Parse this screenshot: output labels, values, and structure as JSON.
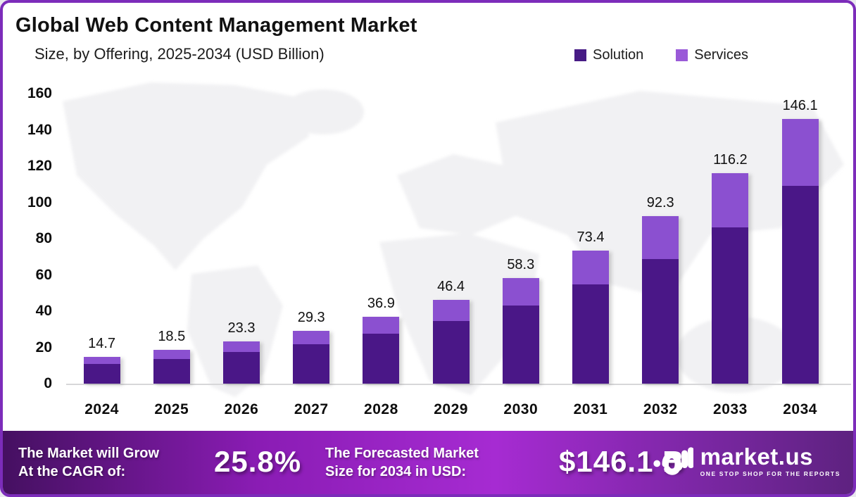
{
  "header": {
    "title": "Global Web Content Management  Market",
    "subtitle": "Size, by Offering, 2025-2034 (USD Billion)"
  },
  "legend": [
    {
      "label": "Solution",
      "color": "#471b85"
    },
    {
      "label": "Services",
      "color": "#9a5ad8"
    }
  ],
  "chart_data": {
    "type": "bar",
    "stacked": true,
    "title": "Global Web Content Management Market Size, by Offering, 2025-2034 (USD Billion)",
    "categories": [
      "2024",
      "2025",
      "2026",
      "2027",
      "2028",
      "2029",
      "2030",
      "2031",
      "2032",
      "2033",
      "2034"
    ],
    "series": [
      {
        "name": "Solution",
        "color": "#4a1787",
        "values": [
          10.9,
          13.7,
          17.3,
          21.9,
          27.4,
          34.5,
          43.3,
          54.6,
          68.6,
          86.4,
          109.0
        ]
      },
      {
        "name": "Services",
        "color": "#8b50d0",
        "values": [
          3.8,
          4.8,
          6.0,
          7.4,
          9.5,
          11.9,
          15.0,
          18.8,
          23.7,
          29.8,
          37.1
        ]
      }
    ],
    "totals": [
      14.7,
      18.5,
      23.3,
      29.3,
      36.9,
      46.4,
      58.3,
      73.4,
      92.3,
      116.2,
      146.1
    ],
    "total_labels": [
      "14.7",
      "18.5",
      "23.3",
      "29.3",
      "36.9",
      "46.4",
      "58.3",
      "73.4",
      "92.3",
      "116.2",
      "146.1"
    ],
    "y_ticks": [
      0,
      20,
      40,
      60,
      80,
      100,
      120,
      140,
      160
    ],
    "ylim": [
      0,
      160
    ],
    "xlabel": "",
    "ylabel": "",
    "grid": false,
    "legend_position": "top-right",
    "value_unit": "USD Billion"
  },
  "footer": {
    "cagr_label_lines": [
      "The Market will Grow",
      "At the CAGR of:"
    ],
    "cagr_value": "25.8%",
    "forecast_label_lines": [
      "The Forecasted Market",
      "Size for 2034 in USD:"
    ],
    "forecast_value": "$146.1 B",
    "logo_name": "market.us",
    "logo_tagline": "ONE STOP SHOP FOR THE REPORTS"
  },
  "colors": {
    "frame_border": "#7c2cba",
    "solution": "#4a1787",
    "services": "#8b50d0",
    "footer_gradient_start": "#451061",
    "footer_gradient_mid": "#a62bd2",
    "footer_gradient_end": "#5e2280",
    "axis_line": "#d7d7d9",
    "map_fill": "#f1f1f3"
  }
}
